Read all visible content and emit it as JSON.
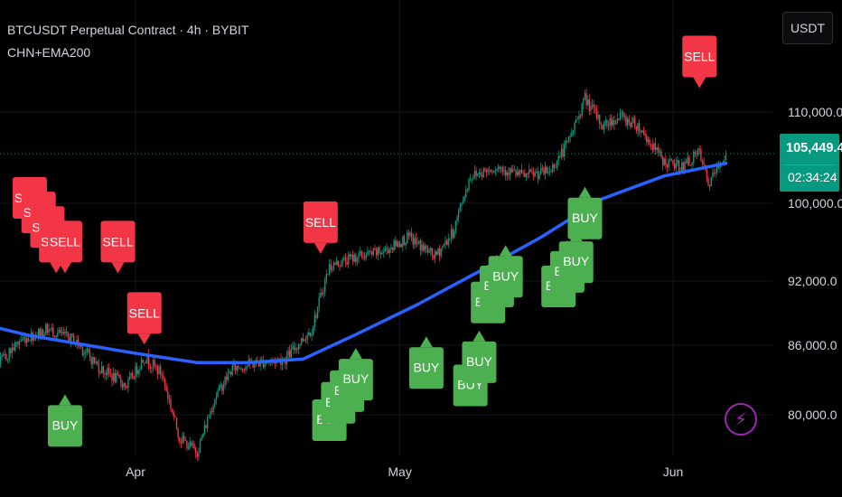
{
  "header": {
    "symbol_line": "BTCUSDT Perpetual Contract · 4h · BYBIT",
    "indicator_line": "CHN+EMA200"
  },
  "currency_button": "USDT",
  "last_price": {
    "price": "105,449.4",
    "countdown": "02:34:24"
  },
  "alert_icon": "lightning-bolt-icon",
  "colors": {
    "background": "#000000",
    "up_candle": "#089981",
    "down_candle": "#f23645",
    "ema": "#2962ff",
    "buy_label": "#4caf50",
    "sell_label": "#f23645",
    "price_tag": "#089981",
    "alert": "#9c27b0"
  },
  "chart_data": {
    "type": "candlestick",
    "timeframe": "4h",
    "x_ticks": [
      {
        "label": "Apr",
        "date": "2025-04-01"
      },
      {
        "label": "May",
        "date": "2025-05-01"
      },
      {
        "label": "Jun",
        "date": "2025-06-01"
      }
    ],
    "y_ticks": [
      {
        "label": "110,000.0",
        "value": 110000
      },
      {
        "label": "100,000.0",
        "value": 100000
      },
      {
        "label": "92,000.0",
        "value": 92000
      },
      {
        "label": "86,000.0",
        "value": 86000
      },
      {
        "label": "80,000.0",
        "value": 80000
      }
    ],
    "last_price": 105449.4,
    "close_path": [
      [
        "2025-03-10",
        84500
      ],
      [
        "2025-03-13",
        82000
      ],
      [
        "2025-03-16",
        84000
      ],
      [
        "2025-03-19",
        86500
      ],
      [
        "2025-03-22",
        87500
      ],
      [
        "2025-03-25",
        86500
      ],
      [
        "2025-03-28",
        84000
      ],
      [
        "2025-03-31",
        82500
      ],
      [
        "2025-04-02",
        85000
      ],
      [
        "2025-04-04",
        83500
      ],
      [
        "2025-04-06",
        78000
      ],
      [
        "2025-04-08",
        76800
      ],
      [
        "2025-04-10",
        81500
      ],
      [
        "2025-04-12",
        84000
      ],
      [
        "2025-04-15",
        84500
      ],
      [
        "2025-04-18",
        84800
      ],
      [
        "2025-04-21",
        87500
      ],
      [
        "2025-04-23",
        93500
      ],
      [
        "2025-04-26",
        94500
      ],
      [
        "2025-04-29",
        95000
      ],
      [
        "2025-05-02",
        96500
      ],
      [
        "2025-05-05",
        94500
      ],
      [
        "2025-05-07",
        97000
      ],
      [
        "2025-05-09",
        103000
      ],
      [
        "2025-05-12",
        104000
      ],
      [
        "2025-05-15",
        103000
      ],
      [
        "2025-05-18",
        103500
      ],
      [
        "2025-05-20",
        106500
      ],
      [
        "2025-05-22",
        111500
      ],
      [
        "2025-05-24",
        108500
      ],
      [
        "2025-05-26",
        109500
      ],
      [
        "2025-05-28",
        108500
      ],
      [
        "2025-05-31",
        104500
      ],
      [
        "2025-06-02",
        104000
      ],
      [
        "2025-06-04",
        105500
      ],
      [
        "2025-06-05",
        102000
      ],
      [
        "2025-06-07",
        105449
      ]
    ],
    "ema200": [
      [
        "2025-03-10",
        88900
      ],
      [
        "2025-03-20",
        86900
      ],
      [
        "2025-04-01",
        85300
      ],
      [
        "2025-04-08",
        84500
      ],
      [
        "2025-04-14",
        84500
      ],
      [
        "2025-04-20",
        84800
      ],
      [
        "2025-04-26",
        87000
      ],
      [
        "2025-05-03",
        89800
      ],
      [
        "2025-05-10",
        93000
      ],
      [
        "2025-05-17",
        96500
      ],
      [
        "2025-05-24",
        100500
      ],
      [
        "2025-05-31",
        103000
      ],
      [
        "2025-06-07",
        104400
      ]
    ],
    "signals": [
      {
        "type": "SELL",
        "date": "2025-03-11",
        "price": 95500
      },
      {
        "type": "SELL",
        "date": "2025-03-20",
        "price": 100000
      },
      {
        "type": "SELL",
        "date": "2025-03-21",
        "price": 98500
      },
      {
        "type": "SELL",
        "date": "2025-03-22",
        "price": 97000
      },
      {
        "type": "SELL",
        "date": "2025-03-23",
        "price": 95500
      },
      {
        "type": "SELL",
        "date": "2025-03-24",
        "price": 95500
      },
      {
        "type": "SELL",
        "date": "2025-03-30",
        "price": 95500
      },
      {
        "type": "SELL",
        "date": "2025-04-02",
        "price": 88500
      },
      {
        "type": "SELL",
        "date": "2025-04-22",
        "price": 97500
      },
      {
        "type": "SELL",
        "date": "2025-06-04",
        "price": 115500
      },
      {
        "type": "BUY",
        "date": "2025-03-24",
        "price": 79500
      },
      {
        "type": "BUY",
        "date": "2025-04-23",
        "price": 80000
      },
      {
        "type": "BUY",
        "date": "2025-04-24",
        "price": 81500
      },
      {
        "type": "BUY",
        "date": "2025-04-25",
        "price": 82500
      },
      {
        "type": "BUY",
        "date": "2025-04-26",
        "price": 83500
      },
      {
        "type": "BUY",
        "date": "2025-05-04",
        "price": 84500
      },
      {
        "type": "BUY",
        "date": "2025-05-09",
        "price": 83000
      },
      {
        "type": "BUY",
        "date": "2025-05-10",
        "price": 85000
      },
      {
        "type": "BUY",
        "date": "2025-05-11",
        "price": 90500
      },
      {
        "type": "BUY",
        "date": "2025-05-12",
        "price": 92000
      },
      {
        "type": "BUY",
        "date": "2025-05-13",
        "price": 93000
      },
      {
        "type": "BUY",
        "date": "2025-05-19",
        "price": 92000
      },
      {
        "type": "BUY",
        "date": "2025-05-20",
        "price": 93500
      },
      {
        "type": "BUY",
        "date": "2025-05-21",
        "price": 94500
      },
      {
        "type": "BUY",
        "date": "2025-05-22",
        "price": 99000
      }
    ]
  }
}
